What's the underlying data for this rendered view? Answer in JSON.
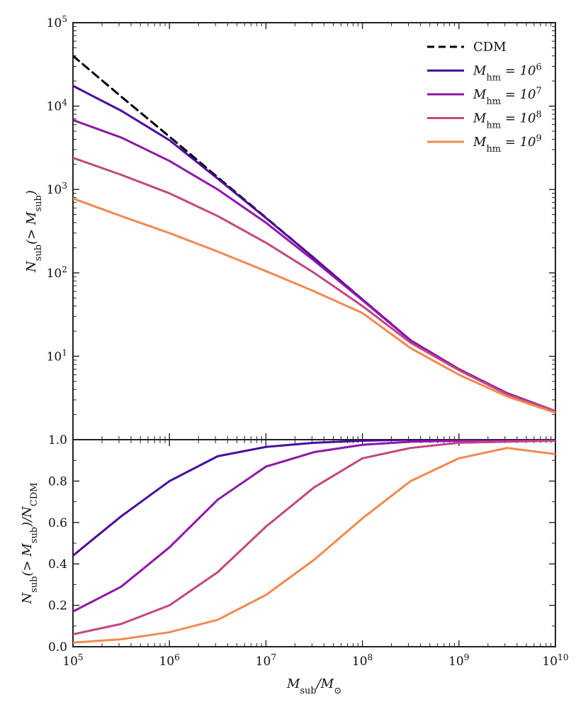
{
  "chart_data": [
    {
      "id": "top-panel",
      "type": "line",
      "xscale": "log",
      "yscale": "log",
      "xlim": [
        100000,
        10000000000
      ],
      "ylim": [
        1,
        100000
      ],
      "ylabel": "N_sub(> M_sub)",
      "yticks": [
        1,
        10,
        100,
        1000,
        10000,
        100000
      ],
      "ytick_labels": [
        "",
        "10^1",
        "10^2",
        "10^3",
        "10^4",
        "10^5"
      ],
      "legend_position": "top-right",
      "grid": false,
      "x": [
        100000,
        316228,
        1000000,
        3162278,
        10000000,
        31622777,
        100000000,
        316227766,
        1000000000,
        3162277660,
        10000000000
      ],
      "series": [
        {
          "name": "CDM",
          "style": "dashed",
          "color": "#000000",
          "values": [
            40000,
            13000,
            4300,
            1400,
            460,
            150,
            48,
            15.5,
            7.0,
            3.6,
            2.2
          ]
        },
        {
          "name": "M_hm = 10^6",
          "style": "solid",
          "color": "#4a0c9b",
          "values": [
            17500,
            8800,
            3900,
            1350,
            455,
            150,
            48,
            15.5,
            7.0,
            3.6,
            2.2
          ]
        },
        {
          "name": "M_hm = 10^7",
          "style": "solid",
          "color": "#8f16a8",
          "values": [
            6800,
            4200,
            2200,
            1000,
            400,
            140,
            47,
            15.4,
            7.0,
            3.6,
            2.2
          ]
        },
        {
          "name": "M_hm = 10^8",
          "style": "solid",
          "color": "#c2477f",
          "values": [
            2400,
            1500,
            900,
            480,
            230,
            100,
            40,
            14.5,
            6.8,
            3.5,
            2.2
          ]
        },
        {
          "name": "M_hm = 10^9",
          "style": "solid",
          "color": "#f3894e",
          "values": [
            780,
            480,
            300,
            180,
            105,
            60,
            33,
            12.5,
            6.0,
            3.3,
            2.1
          ]
        }
      ]
    },
    {
      "id": "bottom-panel",
      "type": "line",
      "xscale": "log",
      "yscale": "linear",
      "xlim": [
        100000,
        10000000000
      ],
      "ylim": [
        0,
        1
      ],
      "xlabel": "M_sub/M_⊙",
      "ylabel": "N_sub(> M_sub)/N_CDM",
      "yticks": [
        0,
        0.2,
        0.4,
        0.6,
        0.8,
        1.0
      ],
      "ytick_labels": [
        "0.0",
        "0.2",
        "0.4",
        "0.6",
        "0.8",
        "1.0"
      ],
      "xticks": [
        100000,
        1000000,
        10000000,
        100000000,
        1000000000,
        10000000000
      ],
      "xtick_labels": [
        "10^5",
        "10^6",
        "10^7",
        "10^8",
        "10^9",
        "10^10"
      ],
      "grid": false,
      "x": [
        100000,
        316228,
        1000000,
        3162278,
        10000000,
        31622777,
        100000000,
        316227766,
        1000000000,
        3162277660,
        10000000000
      ],
      "series": [
        {
          "name": "M_hm = 10^6",
          "color": "#4a0c9b",
          "values": [
            0.44,
            0.63,
            0.8,
            0.92,
            0.965,
            0.985,
            0.995,
            1.0,
            1.0,
            1.0,
            1.0
          ]
        },
        {
          "name": "M_hm = 10^7",
          "color": "#8f16a8",
          "values": [
            0.17,
            0.29,
            0.48,
            0.71,
            0.87,
            0.94,
            0.975,
            0.99,
            0.995,
            1.0,
            1.0
          ]
        },
        {
          "name": "M_hm = 10^8",
          "color": "#c2477f",
          "values": [
            0.06,
            0.11,
            0.2,
            0.36,
            0.58,
            0.77,
            0.91,
            0.96,
            0.985,
            0.99,
            0.995
          ]
        },
        {
          "name": "M_hm = 10^9",
          "color": "#f3894e",
          "values": [
            0.02,
            0.036,
            0.07,
            0.13,
            0.25,
            0.42,
            0.62,
            0.8,
            0.91,
            0.96,
            0.93
          ]
        }
      ]
    }
  ]
}
